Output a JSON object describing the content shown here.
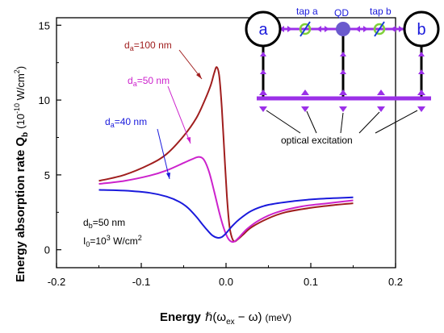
{
  "chart_data": {
    "type": "line",
    "xlabel": {
      "main": "Energy",
      "formula": "ℏ(ω",
      "sub1": "ex",
      "mid": " − ω)",
      "unit": "(meV)"
    },
    "ylabel": {
      "main": "Energy absorption rate Q",
      "sub": "b",
      "unit_open": "(10",
      "sup": "-10",
      "unit_close": " W/cm",
      "sup2": "2",
      "end": ")"
    },
    "xlim": [
      -0.2,
      0.2
    ],
    "ylim": [
      -1.2,
      15.5
    ],
    "x_ticks": [
      "-0.2",
      "-0.1",
      "0.0",
      "0.1",
      "0.2"
    ],
    "y_ticks": [
      "0",
      "5",
      "10",
      "15"
    ],
    "series": [
      {
        "name": "d_a=100 nm",
        "label_main": "d",
        "label_sub": "a",
        "label_rest": "=100 nm",
        "color": "#a01e1e",
        "points": [
          [
            -0.15,
            4.6
          ],
          [
            -0.12,
            5.0
          ],
          [
            -0.09,
            5.7
          ],
          [
            -0.07,
            6.4
          ],
          [
            -0.05,
            7.6
          ],
          [
            -0.035,
            8.8
          ],
          [
            -0.025,
            10.0
          ],
          [
            -0.018,
            11.0
          ],
          [
            -0.014,
            11.8
          ],
          [
            -0.011,
            12.2
          ],
          [
            -0.008,
            11.6
          ],
          [
            -0.005,
            9.5
          ],
          [
            -0.002,
            6.5
          ],
          [
            0.001,
            3.6
          ],
          [
            0.004,
            1.6
          ],
          [
            0.007,
            0.8
          ],
          [
            0.01,
            0.55
          ],
          [
            0.014,
            0.7
          ],
          [
            0.02,
            1.0
          ],
          [
            0.03,
            1.5
          ],
          [
            0.05,
            2.1
          ],
          [
            0.07,
            2.5
          ],
          [
            0.1,
            2.8
          ],
          [
            0.13,
            3.0
          ],
          [
            0.15,
            3.1
          ]
        ]
      },
      {
        "name": "d_a=50 nm",
        "label_main": "d",
        "label_sub": "a",
        "label_rest": "=50 nm",
        "color": "#cc22cc",
        "points": [
          [
            -0.15,
            4.4
          ],
          [
            -0.12,
            4.6
          ],
          [
            -0.09,
            4.95
          ],
          [
            -0.07,
            5.3
          ],
          [
            -0.05,
            5.8
          ],
          [
            -0.04,
            6.05
          ],
          [
            -0.032,
            6.2
          ],
          [
            -0.026,
            6.0
          ],
          [
            -0.02,
            5.2
          ],
          [
            -0.014,
            3.9
          ],
          [
            -0.008,
            2.5
          ],
          [
            -0.003,
            1.5
          ],
          [
            0.002,
            0.8
          ],
          [
            0.006,
            0.55
          ],
          [
            0.01,
            0.55
          ],
          [
            0.015,
            0.8
          ],
          [
            0.025,
            1.4
          ],
          [
            0.04,
            2.0
          ],
          [
            0.06,
            2.5
          ],
          [
            0.09,
            2.9
          ],
          [
            0.12,
            3.1
          ],
          [
            0.15,
            3.3
          ]
        ]
      },
      {
        "name": "d_a=40 nm",
        "label_main": "d",
        "label_sub": "a",
        "label_rest": "=40 nm",
        "color": "#1a1adc",
        "points": [
          [
            -0.15,
            4.0
          ],
          [
            -0.12,
            3.95
          ],
          [
            -0.09,
            3.8
          ],
          [
            -0.07,
            3.55
          ],
          [
            -0.055,
            3.2
          ],
          [
            -0.045,
            2.8
          ],
          [
            -0.035,
            2.2
          ],
          [
            -0.028,
            1.7
          ],
          [
            -0.022,
            1.3
          ],
          [
            -0.016,
            0.95
          ],
          [
            -0.01,
            0.8
          ],
          [
            -0.005,
            0.85
          ],
          [
            0.0,
            1.1
          ],
          [
            0.006,
            1.5
          ],
          [
            0.015,
            2.0
          ],
          [
            0.03,
            2.6
          ],
          [
            0.05,
            3.0
          ],
          [
            0.08,
            3.25
          ],
          [
            0.11,
            3.4
          ],
          [
            0.15,
            3.5
          ]
        ]
      }
    ],
    "annotations": {
      "db": {
        "main": "d",
        "sub": "b",
        "rest": "=50 nm"
      },
      "i0": {
        "main": "I",
        "sub": "0",
        "rest": "=10",
        "sup": "3",
        "tail": " W/cm",
        "sup2": "2"
      }
    },
    "inset": {
      "node_a": "a",
      "node_b": "b",
      "qd": "QD",
      "tap_a": "tap a",
      "tap_b": "tap b",
      "caption": "optical excitation",
      "waveguide_color": "#9b30e8",
      "qd_color": "#6a5acd",
      "tap_color": "#7fd03a"
    }
  }
}
